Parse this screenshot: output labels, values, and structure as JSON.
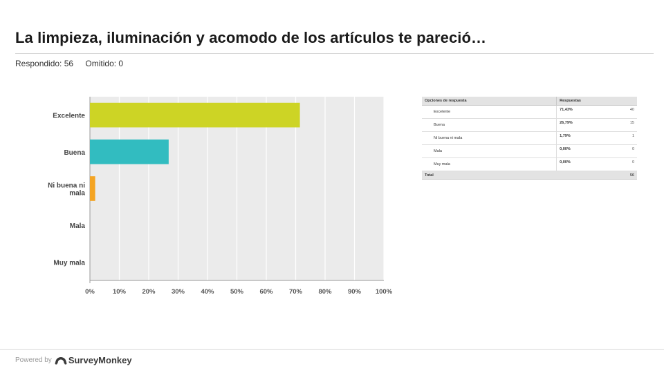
{
  "header": {
    "title": "La limpieza, iluminación y acomodo de los artículos te pareció…",
    "answered": "Respondido: 56",
    "skipped": "Omitido: 0"
  },
  "chart_data": {
    "type": "bar",
    "orientation": "horizontal",
    "categories": [
      "Excelente",
      "Buena",
      "Ni buena ni mala",
      "Mala",
      "Muy mala"
    ],
    "category_lines": [
      [
        "Excelente"
      ],
      [
        "Buena"
      ],
      [
        "Ni buena ni",
        "mala"
      ],
      [
        "Mala"
      ],
      [
        "Muy mala"
      ]
    ],
    "values": [
      71.43,
      26.79,
      1.79,
      0,
      0
    ],
    "bar_colors": [
      "#cdd425",
      "#32bcc0",
      "#f4a423",
      "#e05a5a",
      "#8f6fb6"
    ],
    "xlim": [
      0,
      100
    ],
    "xticks": [
      "0%",
      "10%",
      "20%",
      "30%",
      "40%",
      "50%",
      "60%",
      "70%",
      "80%",
      "90%",
      "100%"
    ],
    "grid": true,
    "title": "",
    "xlabel": "",
    "ylabel": ""
  },
  "table": {
    "headers": [
      "Opciones de respuesta",
      "Respuestas"
    ],
    "rows": [
      {
        "option": "Excelente",
        "percent": "71,43%",
        "count": "40"
      },
      {
        "option": "Buena",
        "percent": "26,79%",
        "count": "15"
      },
      {
        "option": "Ni buena ni mala",
        "percent": "1,79%",
        "count": "1"
      },
      {
        "option": "Mala",
        "percent": "0,00%",
        "count": "0"
      },
      {
        "option": "Muy mala",
        "percent": "0,00%",
        "count": "0"
      }
    ],
    "total_label": "Total",
    "total_count": "56"
  },
  "footer": {
    "powered_by": "Powered by",
    "brand": "SurveyMonkey",
    "brand_color": "#3a3a3a"
  }
}
